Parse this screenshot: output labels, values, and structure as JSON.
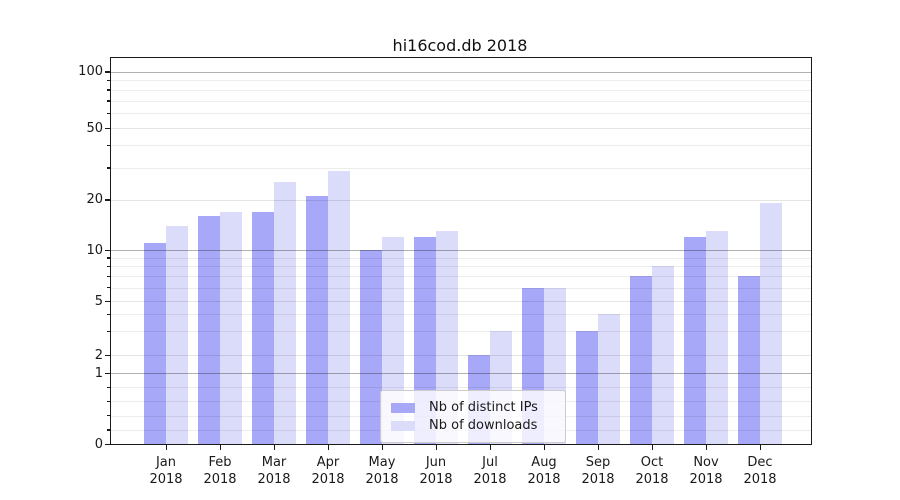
{
  "chart_data": {
    "type": "bar",
    "title": "hi16cod.db 2018",
    "categories": [
      "Jan 2018",
      "Feb 2018",
      "Mar 2018",
      "Apr 2018",
      "May 2018",
      "Jun 2018",
      "Jul 2018",
      "Aug 2018",
      "Sep 2018",
      "Oct 2018",
      "Nov 2018",
      "Dec 2018"
    ],
    "series": [
      {
        "name": "Nb of distinct IPs",
        "color": "#a8a8f8",
        "values": [
          11,
          16,
          17,
          21,
          10,
          12,
          2,
          6,
          3,
          7,
          12,
          7
        ]
      },
      {
        "name": "Nb of downloads",
        "color": "#dbdbfa",
        "values": [
          14,
          17,
          25,
          29,
          12,
          13,
          3,
          6,
          4,
          8,
          13,
          19
        ]
      }
    ],
    "yscale": "symlog-like",
    "y_ticks": [
      0,
      1,
      2,
      5,
      10,
      20,
      50,
      100
    ],
    "y_minor_ticks": [
      0.2,
      0.4,
      0.6,
      0.8,
      3,
      4,
      6,
      7,
      8,
      9,
      30,
      40,
      60,
      70,
      80,
      90
    ],
    "y_major_grid_at": [
      1,
      10,
      100
    ],
    "ylim": [
      0,
      110
    ],
    "xlabel": "",
    "ylabel": "",
    "grid": "on",
    "legend_position": "inside-bottom-center"
  }
}
